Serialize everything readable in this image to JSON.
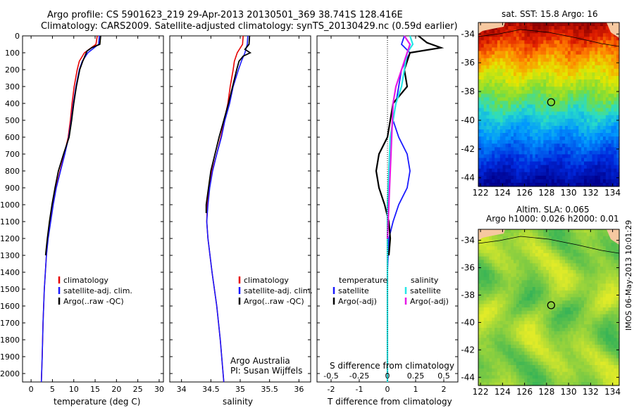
{
  "header": {
    "line1": "Argo profile: CS 5901623_219 29-Apr-2013 20130501_369 38.741S 128.416E",
    "line2": "Climatology: CARS2009. Satellite-adjusted climatology: synTS_20130429.nc (0.59d earlier)"
  },
  "colors": {
    "climatology": "#e60000",
    "satellite": "#1a1aff",
    "argo": "#000000",
    "satellite_s": "#27e6e6",
    "argo_s": "#e619e6"
  },
  "chart_data": [
    {
      "type": "line",
      "xlabel": "temperature (deg C)",
      "xlim": [
        -2,
        31
      ],
      "ylim": [
        2050,
        0
      ],
      "x_ticks": [
        "0",
        "5",
        "10",
        "15",
        "20",
        "25",
        "30"
      ],
      "y_ticks": [
        "0",
        "100",
        "200",
        "300",
        "400",
        "500",
        "600",
        "700",
        "800",
        "900",
        "1000",
        "1100",
        "1200",
        "1300",
        "1400",
        "1500",
        "1600",
        "1700",
        "1800",
        "1900",
        "2000"
      ],
      "legend": [
        "climatology",
        "satellite-adj. clim.",
        "Argo(..raw -QC)"
      ],
      "series": [
        {
          "name": "climatology",
          "depth": [
            0,
            50,
            100,
            150,
            200,
            300,
            400,
            500,
            600,
            700,
            800,
            900,
            1000,
            1100,
            1200,
            1300,
            1500,
            1700,
            1900,
            2050
          ],
          "values": [
            15.5,
            15.2,
            12.5,
            11.3,
            10.8,
            10.1,
            9.6,
            9.2,
            8.7,
            7.8,
            6.8,
            5.8,
            5.1,
            4.5,
            3.9,
            3.6,
            3.1,
            2.8,
            2.6,
            2.4
          ]
        },
        {
          "name": "satellite-adj. clim.",
          "depth": [
            0,
            50,
            100,
            150,
            200,
            300,
            400,
            500,
            600,
            700,
            800,
            900,
            1000,
            1100,
            1200,
            1300,
            1500,
            1700,
            1900,
            2050
          ],
          "values": [
            16.0,
            15.8,
            13.3,
            12.0,
            11.3,
            10.5,
            9.9,
            9.4,
            8.8,
            7.9,
            6.9,
            5.9,
            5.2,
            4.6,
            4.0,
            3.6,
            3.1,
            2.8,
            2.6,
            2.4
          ]
        },
        {
          "name": "Argo(..raw -QC)",
          "depth": [
            0,
            50,
            70,
            90,
            150,
            200,
            300,
            400,
            500,
            600,
            700,
            800,
            900,
            1000,
            1100,
            1200,
            1300
          ],
          "values": [
            16.3,
            16.1,
            14.2,
            13.1,
            12.1,
            11.4,
            10.6,
            10.0,
            9.5,
            8.9,
            7.6,
            6.4,
            5.6,
            4.9,
            4.3,
            3.8,
            3.4
          ]
        }
      ]
    },
    {
      "type": "line",
      "xlabel": "salinity",
      "xlim": [
        33.8,
        36.2
      ],
      "ylim": [
        2050,
        0
      ],
      "x_ticks": [
        "34",
        "34.5",
        "35",
        "35.5",
        "36"
      ],
      "legend": [
        "climatology",
        "satellite-adj. clim.",
        "Argo(..raw -QC)"
      ],
      "annotations": [
        "Argo Australia",
        "PI: Susan Wijffels"
      ],
      "series": [
        {
          "name": "climatology",
          "depth": [
            0,
            50,
            100,
            150,
            200,
            300,
            400,
            500,
            600,
            700,
            800,
            900,
            1000,
            1100,
            1200,
            1400,
            1600,
            1800,
            2050
          ],
          "values": [
            35.05,
            35.04,
            34.95,
            34.9,
            34.88,
            34.83,
            34.79,
            34.73,
            34.67,
            34.6,
            34.52,
            34.47,
            34.44,
            34.43,
            34.45,
            34.52,
            34.6,
            34.66,
            34.72
          ]
        },
        {
          "name": "satellite-adj. clim.",
          "depth": [
            0,
            50,
            100,
            150,
            200,
            300,
            400,
            500,
            600,
            700,
            800,
            900,
            1000,
            1100,
            1200,
            1400,
            1600,
            1800,
            2050
          ],
          "values": [
            35.13,
            35.12,
            35.08,
            35.02,
            34.97,
            34.88,
            34.82,
            34.74,
            34.68,
            34.6,
            34.53,
            34.48,
            34.45,
            34.43,
            34.45,
            34.52,
            34.6,
            34.66,
            34.72
          ]
        },
        {
          "name": "Argo(..raw -QC)",
          "depth": [
            0,
            50,
            80,
            100,
            120,
            150,
            200,
            300,
            400,
            500,
            600,
            700,
            800,
            900,
            1000,
            1050
          ],
          "values": [
            35.16,
            35.15,
            35.08,
            35.17,
            35.05,
            34.98,
            34.94,
            34.87,
            34.8,
            34.72,
            34.64,
            34.57,
            34.5,
            34.46,
            34.42,
            34.42
          ]
        }
      ]
    },
    {
      "type": "line",
      "xlabel": "T difference from climatology",
      "xlabel_top": "S difference from climatology",
      "xlim": [
        -2.5,
        2.5
      ],
      "ylim": [
        2050,
        0
      ],
      "x_ticks": [
        "-2",
        "-1",
        "0",
        "1",
        "2"
      ],
      "x_ticks_top": [
        "-0.5",
        "-0.25",
        "0",
        "0.25",
        "0.5"
      ],
      "legend": [
        "temperature",
        "satellite",
        "Argo(-adj)",
        "salinity",
        "satellite",
        "Argo(-adj)"
      ],
      "series": [
        {
          "name": "satellite",
          "depth": [
            0,
            50,
            100,
            200,
            300,
            400,
            500,
            600,
            700,
            800,
            900,
            1000,
            1100,
            1200,
            1400,
            1600,
            1800,
            2050
          ],
          "values": [
            0.6,
            0.5,
            0.8,
            0.5,
            0.4,
            0.3,
            0.2,
            0.4,
            0.7,
            0.8,
            0.7,
            0.4,
            0.2,
            0.05,
            0.0,
            0.0,
            0.0,
            0.0
          ]
        },
        {
          "name": "Argo(-adj)",
          "depth": [
            0,
            40,
            70,
            100,
            200,
            300,
            400,
            500,
            600,
            700,
            800,
            900,
            1000,
            1100,
            1200,
            1300
          ],
          "values": [
            1.1,
            1.4,
            1.9,
            0.8,
            0.6,
            0.7,
            0.2,
            0.1,
            0.0,
            -0.3,
            -0.4,
            -0.3,
            -0.1,
            0.05,
            0.1,
            0.05
          ]
        },
        {
          "name": "satellite",
          "depth": [
            0,
            50,
            100,
            200,
            300,
            400,
            600,
            800,
            1000,
            1400,
            2050
          ],
          "values": [
            0.8,
            0.9,
            0.7,
            0.6,
            0.5,
            0.3,
            0.1,
            0.05,
            0.0,
            0.0,
            0.0
          ]
        },
        {
          "name": "Argo(-adj)",
          "depth": [
            0,
            50,
            100,
            200,
            300,
            400,
            600,
            800,
            1000,
            1200
          ],
          "values": [
            0.6,
            0.8,
            0.7,
            0.5,
            0.3,
            0.2,
            0.15,
            0.1,
            0.05,
            0.0
          ]
        }
      ]
    },
    {
      "type": "heatmap",
      "title": "sat. SST: 15.8 Argo: 16",
      "x_ticks": [
        "122",
        "124",
        "126",
        "128",
        "130",
        "132",
        "134"
      ],
      "y_ticks": [
        "-34",
        "-36",
        "-38",
        "-40",
        "-42",
        "-44"
      ],
      "xlim": [
        121.8,
        134.6
      ],
      "ylim": [
        -44.6,
        -33.2
      ],
      "marker": {
        "lon": 128.416,
        "lat": -38.741
      }
    },
    {
      "type": "heatmap",
      "title": "Altim. SLA: 0.065",
      "subtitle": "Argo h1000: 0.026 h2000: 0.01",
      "x_ticks": [
        "122",
        "124",
        "126",
        "128",
        "130",
        "132",
        "134"
      ],
      "y_ticks": [
        "-34",
        "-36",
        "-38",
        "-40",
        "-42",
        "-44"
      ],
      "xlim": [
        121.8,
        134.6
      ],
      "ylim": [
        -44.6,
        -33.2
      ],
      "marker": {
        "lon": 128.416,
        "lat": -38.741
      }
    }
  ],
  "side_label": "IMOS 06-May-2013 10:01:29"
}
